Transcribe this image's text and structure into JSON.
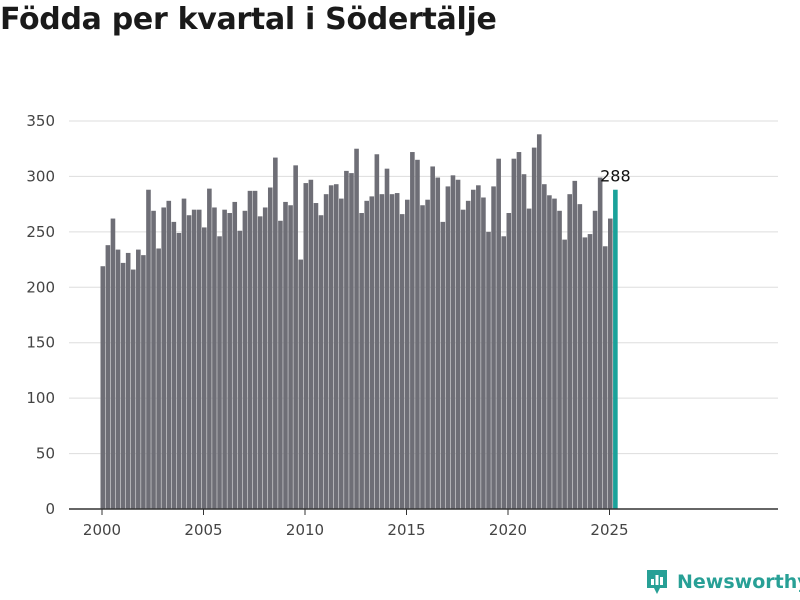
{
  "title": "Födda per kvartal i Södertälje",
  "brand": {
    "name": "Newsworthy",
    "icon": "newsworthy-logo-icon"
  },
  "colors": {
    "bar": "#6e6e76",
    "highlight": "#1aa29a",
    "grid": "#dddddd",
    "axis": "#333333",
    "brand": "#28a096"
  },
  "chart_data": {
    "type": "bar",
    "title": "Födda per kvartal i Södertälje",
    "xlabel": "",
    "ylabel": "",
    "ylim": [
      0,
      350
    ],
    "yticks": [
      0,
      50,
      100,
      150,
      200,
      250,
      300,
      350
    ],
    "xticks": [
      "2000",
      "2005",
      "2010",
      "2015",
      "2020",
      "2025"
    ],
    "grid": true,
    "start_year": 2000,
    "annotation": "288",
    "highlight_last": true,
    "values": [
      219,
      238,
      262,
      234,
      222,
      231,
      216,
      234,
      229,
      288,
      269,
      235,
      272,
      278,
      259,
      249,
      280,
      265,
      270,
      270,
      254,
      289,
      272,
      246,
      270,
      267,
      277,
      251,
      269,
      287,
      287,
      264,
      272,
      290,
      317,
      260,
      277,
      274,
      310,
      225,
      294,
      297,
      276,
      265,
      284,
      292,
      293,
      280,
      305,
      303,
      325,
      267,
      278,
      282,
      320,
      284,
      307,
      284,
      285,
      266,
      279,
      322,
      315,
      274,
      279,
      309,
      299,
      259,
      291,
      301,
      297,
      270,
      278,
      288,
      292,
      281,
      250,
      291,
      316,
      246,
      267,
      316,
      322,
      302,
      271,
      326,
      338,
      293,
      283,
      280,
      269,
      243,
      284,
      296,
      275,
      245,
      248,
      269,
      299,
      237,
      262,
      288
    ]
  }
}
